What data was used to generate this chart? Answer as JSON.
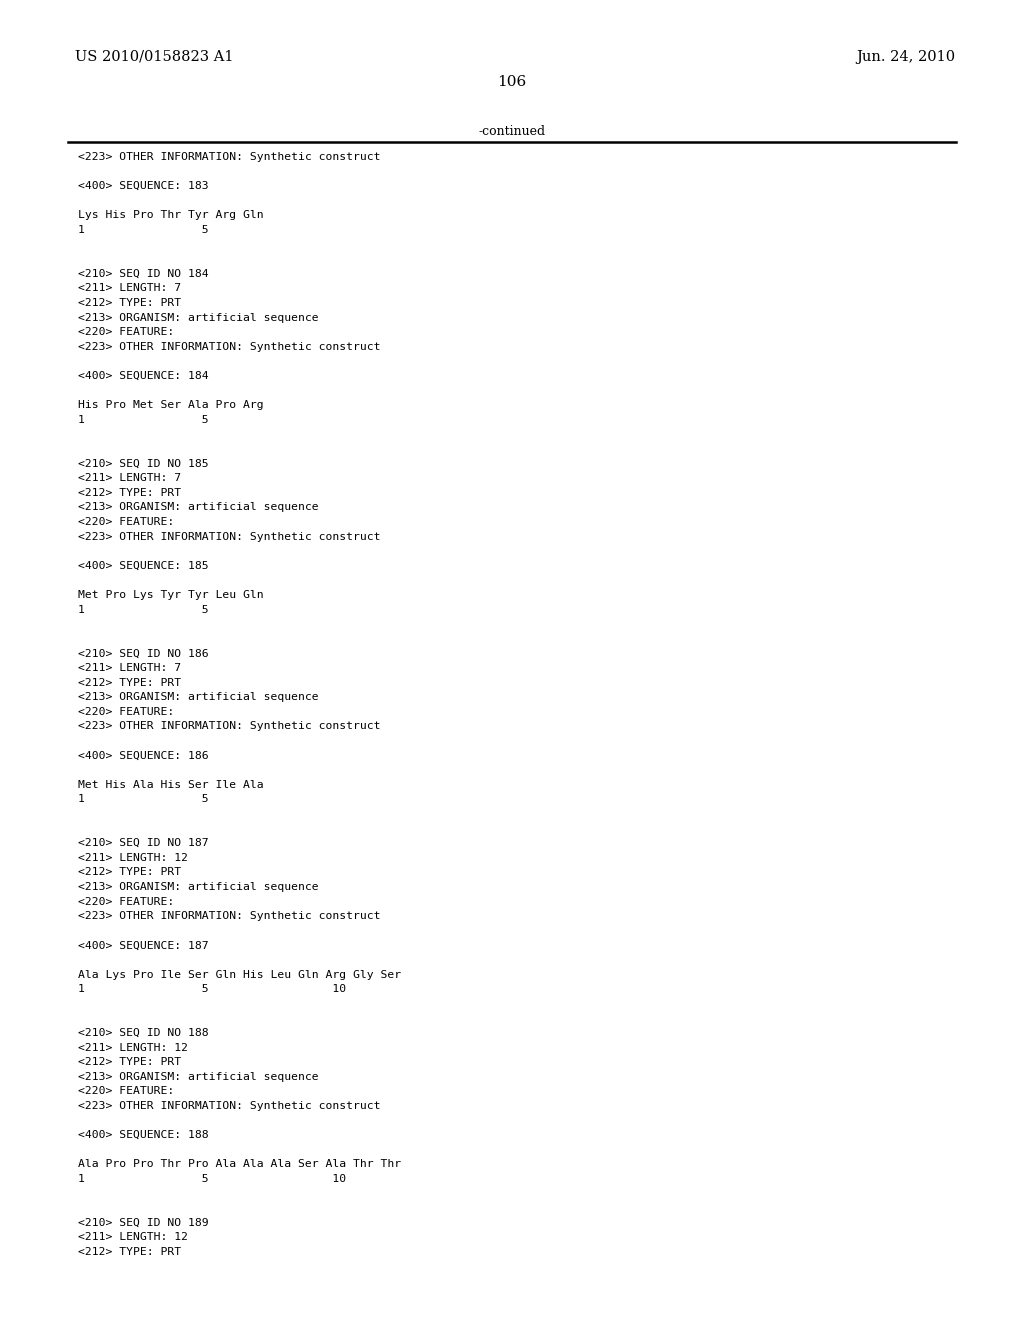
{
  "background_color": "#ffffff",
  "page_number": "106",
  "left_header": "US 2010/0158823 A1",
  "right_header": "Jun. 24, 2010",
  "continued_label": "-continued",
  "content_lines": [
    "<223> OTHER INFORMATION: Synthetic construct",
    "",
    "<400> SEQUENCE: 183",
    "",
    "Lys His Pro Thr Tyr Arg Gln",
    "1                 5",
    "",
    "",
    "<210> SEQ ID NO 184",
    "<211> LENGTH: 7",
    "<212> TYPE: PRT",
    "<213> ORGANISM: artificial sequence",
    "<220> FEATURE:",
    "<223> OTHER INFORMATION: Synthetic construct",
    "",
    "<400> SEQUENCE: 184",
    "",
    "His Pro Met Ser Ala Pro Arg",
    "1                 5",
    "",
    "",
    "<210> SEQ ID NO 185",
    "<211> LENGTH: 7",
    "<212> TYPE: PRT",
    "<213> ORGANISM: artificial sequence",
    "<220> FEATURE:",
    "<223> OTHER INFORMATION: Synthetic construct",
    "",
    "<400> SEQUENCE: 185",
    "",
    "Met Pro Lys Tyr Tyr Leu Gln",
    "1                 5",
    "",
    "",
    "<210> SEQ ID NO 186",
    "<211> LENGTH: 7",
    "<212> TYPE: PRT",
    "<213> ORGANISM: artificial sequence",
    "<220> FEATURE:",
    "<223> OTHER INFORMATION: Synthetic construct",
    "",
    "<400> SEQUENCE: 186",
    "",
    "Met His Ala His Ser Ile Ala",
    "1                 5",
    "",
    "",
    "<210> SEQ ID NO 187",
    "<211> LENGTH: 12",
    "<212> TYPE: PRT",
    "<213> ORGANISM: artificial sequence",
    "<220> FEATURE:",
    "<223> OTHER INFORMATION: Synthetic construct",
    "",
    "<400> SEQUENCE: 187",
    "",
    "Ala Lys Pro Ile Ser Gln His Leu Gln Arg Gly Ser",
    "1                 5                  10",
    "",
    "",
    "<210> SEQ ID NO 188",
    "<211> LENGTH: 12",
    "<212> TYPE: PRT",
    "<213> ORGANISM: artificial sequence",
    "<220> FEATURE:",
    "<223> OTHER INFORMATION: Synthetic construct",
    "",
    "<400> SEQUENCE: 188",
    "",
    "Ala Pro Pro Thr Pro Ala Ala Ala Ser Ala Thr Thr",
    "1                 5                  10",
    "",
    "",
    "<210> SEQ ID NO 189",
    "<211> LENGTH: 12",
    "<212> TYPE: PRT"
  ]
}
